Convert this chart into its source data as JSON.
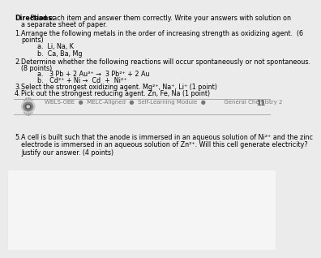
{
  "background_top": "#ebebeb",
  "background_bottom": "#f5f5f5",
  "directions_bold": "Directions:",
  "directions_rest": " Read each item and answer them correctly. Write your answers with solution on",
  "directions_line2": "a separate sheet of paper.",
  "item1_num": "1.",
  "item1_text": "Arrange the following metals in the order of increasing strength as oxidizing agent.  (6",
  "item1_cont": "points)",
  "item1a": "a.  Li, Na, K",
  "item1b": "b.  Ca, Ba, Mg",
  "item2_num": "2.",
  "item2_text": "Determine whether the following reactions will occur spontaneously or not spontaneous.",
  "item2_cont": "(8 points)",
  "item2a": "a.   3 Pb + 2 Au³⁺ →  3 Pb²⁺ + 2 Au",
  "item2b": "b.   Cd²⁺ + Ni →  Cd  +  Ni²⁺",
  "item3_num": "3.",
  "item3_text": "Select the strongest oxidizing agent. Mg²⁺, Na⁺, Li⁺ (1 point)",
  "item4_num": "4.",
  "item4_text": "Pick out the strongest reducing agent. Zn, Fe, Na (1 point)",
  "footer_text": "WBLS-OBE  ●  MELC-Aligned  ●  Self-Learning Module  ●          General Chemistry 2",
  "footer_page": "11",
  "item5_num": "5.",
  "item5_line1": "A cell is built such that the anode is immersed in an aqueous solution of Ni²⁺ and the zinc",
  "item5_line2": "electrode is immersed in an aqueous solution of Zn²⁺. Will this cell generate electricity?",
  "item5_line3": "Justify our answer. (4 points)",
  "fs": 5.8,
  "fs_footer": 5.0
}
